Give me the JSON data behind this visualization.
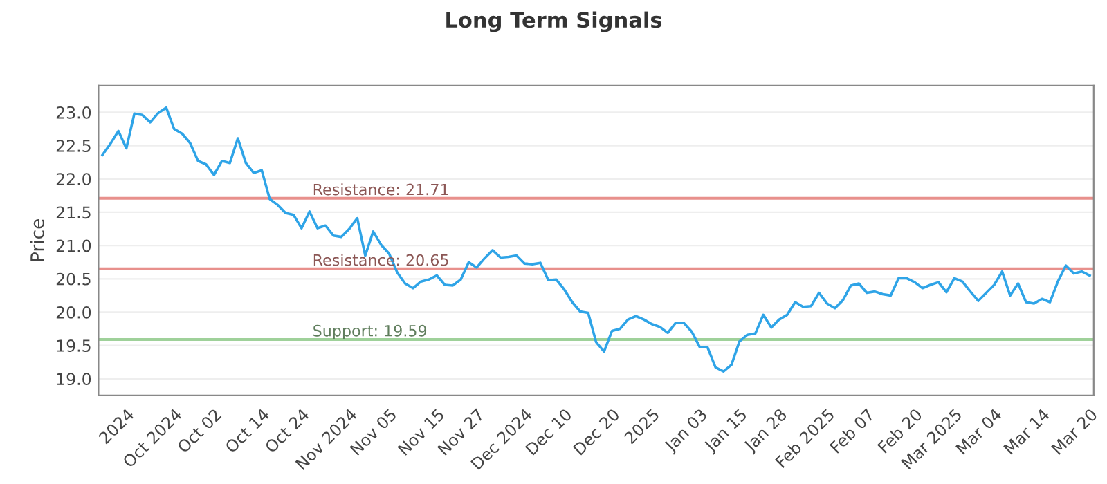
{
  "chart_data": {
    "type": "line",
    "title": "Long Term Signals",
    "ylabel": "Price",
    "categories": [
      null,
      null,
      null,
      "2024",
      null,
      null,
      null,
      null,
      null,
      "Oct 2024",
      null,
      null,
      null,
      null,
      "Oct 02",
      null,
      null,
      null,
      null,
      null,
      "Oct 14",
      null,
      null,
      null,
      null,
      "Oct 24",
      null,
      null,
      null,
      null,
      null,
      "Nov 2024",
      null,
      null,
      null,
      null,
      "Nov 05",
      null,
      null,
      null,
      null,
      null,
      "Nov 15",
      null,
      null,
      null,
      null,
      "Nov 27",
      null,
      null,
      null,
      null,
      null,
      "Dec 2024",
      null,
      null,
      null,
      null,
      "Dec 10",
      null,
      null,
      null,
      null,
      null,
      "Dec 20",
      null,
      null,
      null,
      null,
      "2025",
      null,
      null,
      null,
      null,
      null,
      "Jan 03",
      null,
      null,
      null,
      null,
      "Jan 15",
      null,
      null,
      null,
      null,
      "Jan 28",
      null,
      null,
      null,
      null,
      null,
      "Feb 2025",
      null,
      null,
      null,
      null,
      "Feb 07",
      null,
      null,
      null,
      null,
      null,
      "Feb 20",
      null,
      null,
      null,
      null,
      "Mar 2025",
      null,
      null,
      null,
      null,
      "Mar 04",
      null,
      null,
      null,
      null,
      null,
      "Mar 14",
      null,
      null,
      null,
      null,
      null,
      "Mar 20"
    ],
    "series": [
      {
        "color": "#2fa4e7",
        "values": [
          22.36,
          22.53,
          22.72,
          22.46,
          22.98,
          22.96,
          22.85,
          22.99,
          23.07,
          22.75,
          22.68,
          22.54,
          22.27,
          22.22,
          22.06,
          22.27,
          22.24,
          22.61,
          22.24,
          22.09,
          22.13,
          21.7,
          21.61,
          21.49,
          21.46,
          21.26,
          21.51,
          21.26,
          21.3,
          21.15,
          21.13,
          21.25,
          21.41,
          20.85,
          21.21,
          21.01,
          20.88,
          20.6,
          20.43,
          20.36,
          20.46,
          20.49,
          20.55,
          20.41,
          20.4,
          20.49,
          20.75,
          20.67,
          20.81,
          20.93,
          20.82,
          20.83,
          20.85,
          20.73,
          20.72,
          20.74,
          20.48,
          20.49,
          20.34,
          20.15,
          20.01,
          19.99,
          19.55,
          19.41,
          19.72,
          19.75,
          19.89,
          19.94,
          19.89,
          19.82,
          19.78,
          19.69,
          19.84,
          19.84,
          19.71,
          19.48,
          19.47,
          19.17,
          19.11,
          19.21,
          19.56,
          19.66,
          19.68,
          19.96,
          19.77,
          19.89,
          19.96,
          20.15,
          20.08,
          20.09,
          20.29,
          20.13,
          20.06,
          20.18,
          20.4,
          20.43,
          20.29,
          20.31,
          20.27,
          20.25,
          20.51,
          20.51,
          20.45,
          20.36,
          20.41,
          20.45,
          20.3,
          20.51,
          20.46,
          20.31,
          20.17,
          20.29,
          20.41,
          20.61,
          20.25,
          20.43,
          20.15,
          20.13,
          20.2,
          20.15,
          20.46,
          20.7,
          20.58,
          20.61,
          20.55
        ]
      }
    ],
    "ylim": [
      18.75,
      23.4
    ],
    "yticks": [
      {
        "value": 19,
        "label": "19.0"
      },
      {
        "value": 19.5,
        "label": "19.5"
      },
      {
        "value": 20,
        "label": "20.0"
      },
      {
        "value": 20.5,
        "label": "20.5"
      },
      {
        "value": 21,
        "label": "21.0"
      },
      {
        "value": 21.5,
        "label": "21.5"
      },
      {
        "value": 22,
        "label": "22.0"
      },
      {
        "value": 22.5,
        "label": "22.5"
      },
      {
        "value": 23,
        "label": "23.0"
      }
    ],
    "ref_lines": [
      {
        "axis": "y",
        "value": 21.71,
        "label": "Resistance: 21.71",
        "color": "#e8908c"
      },
      {
        "axis": "y",
        "value": 20.65,
        "label": "Resistance: 20.65",
        "color": "#e8908c"
      },
      {
        "axis": "y",
        "value": 19.59,
        "label": "Support: 19.59",
        "color": "#9fd19a"
      }
    ],
    "grid": "y",
    "legend": false,
    "marker": "none",
    "line_style": "solid"
  }
}
